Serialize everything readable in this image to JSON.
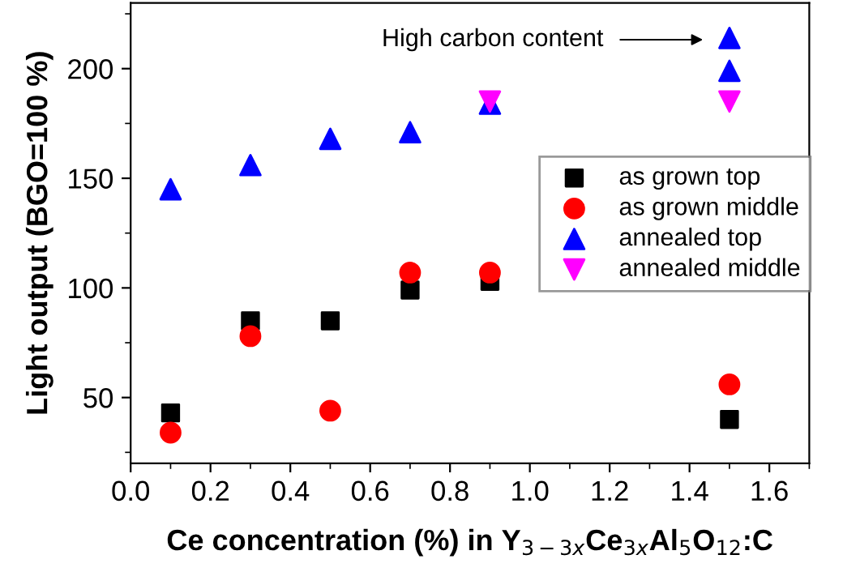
{
  "chart_data": {
    "type": "scatter",
    "xlabel": "Ce concentration (%) in Y$_{3−3x}$Ce$_{3x}$Al$_{5}$O$_{12}$:C",
    "ylabel": "Light output (BGO=100 %)",
    "xlim": [
      0,
      1.7
    ],
    "ylim": [
      20,
      230
    ],
    "xticks": [
      {
        "value": 0,
        "label": "0.0"
      },
      {
        "value": 0.2,
        "label": "0.2"
      },
      {
        "value": 0.4,
        "label": "0.4"
      },
      {
        "value": 0.6,
        "label": "0.6"
      },
      {
        "value": 0.8,
        "label": "0.8"
      },
      {
        "value": 1.0,
        "label": "1.0"
      },
      {
        "value": 1.2,
        "label": "1.2"
      },
      {
        "value": 1.4,
        "label": "1.4"
      },
      {
        "value": 1.6,
        "label": "1.6"
      }
    ],
    "yticks": [
      50,
      100,
      150,
      200
    ],
    "grid": false,
    "legend": "right",
    "series": [
      {
        "name": "as grown top",
        "color": "#000000",
        "marker": "square",
        "x": [
          0.1,
          0.3,
          0.5,
          0.7,
          0.9,
          1.5
        ],
        "values": [
          43,
          85,
          85,
          99,
          103,
          40
        ]
      },
      {
        "name": "as grown middle",
        "color": "#ff0000",
        "marker": "circle",
        "x": [
          0.1,
          0.3,
          0.5,
          0.7,
          0.9,
          1.5
        ],
        "values": [
          34,
          78,
          44,
          107,
          107,
          56
        ]
      },
      {
        "name": "annealed top",
        "color": "#0000ff",
        "marker": "triangle",
        "x": [
          0.1,
          0.3,
          0.5,
          0.7,
          0.9,
          1.5,
          1.5
        ],
        "values": [
          145,
          156,
          168,
          171,
          184,
          214,
          199
        ]
      },
      {
        "name": "annealed middle",
        "color": "#ff00ff",
        "marker": "triangle_down",
        "x": [
          0.9,
          1.5
        ],
        "values": [
          185,
          185
        ]
      }
    ],
    "annotations": [
      "High carbon content"
    ]
  }
}
